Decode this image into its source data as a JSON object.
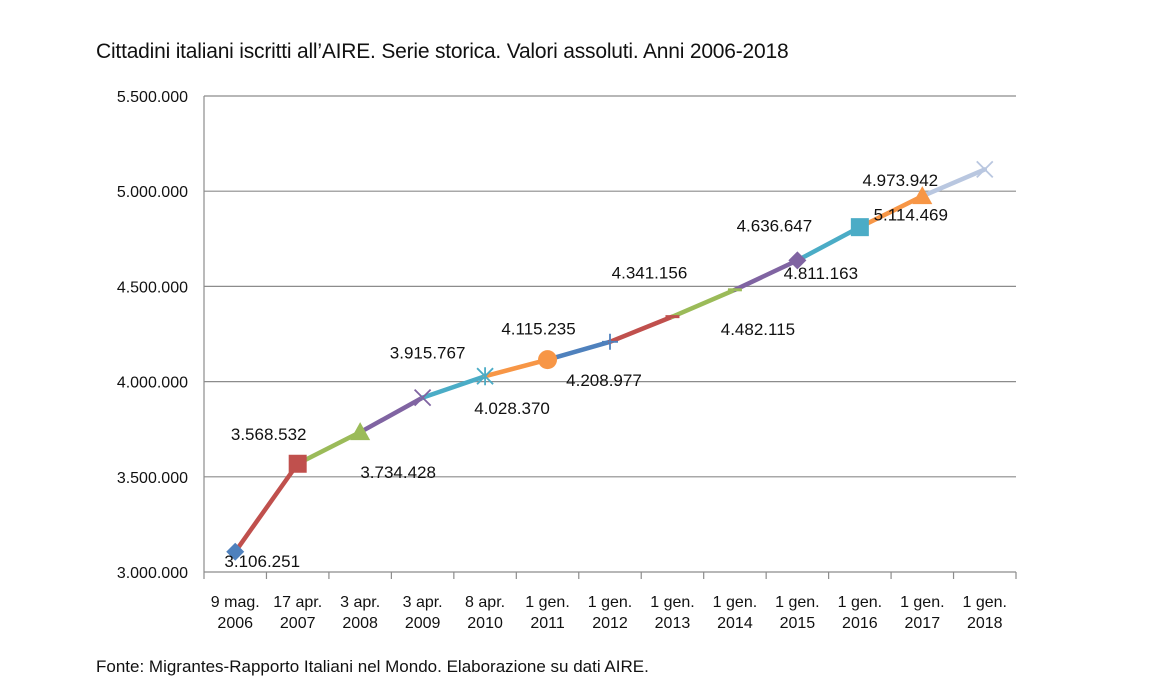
{
  "title": "Cittadini italiani iscritti all’AIRE. Serie storica. Valori assoluti. Anni 2006-2018",
  "source": "Fonte: Migrantes-Rapporto Italiani nel Mondo. Elaborazione su dati AIRE.",
  "chart_data": {
    "type": "line",
    "title": "Cittadini italiani iscritti all’AIRE. Serie storica. Valori assoluti. Anni 2006-2018",
    "xlabel": "",
    "ylabel": "",
    "ylim": [
      3000000,
      5500000
    ],
    "y_ticks": [
      "3.000.000",
      "3.500.000",
      "4.000.000",
      "4.500.000",
      "5.000.000",
      "5.500.000"
    ],
    "grid": "horizontal",
    "categories": [
      [
        "9 mag.",
        "2006"
      ],
      [
        "17 apr.",
        "2007"
      ],
      [
        "3 apr.",
        "2008"
      ],
      [
        "3 apr.",
        "2009"
      ],
      [
        "8 apr.",
        "2010"
      ],
      [
        "1 gen.",
        "2011"
      ],
      [
        "1 gen.",
        "2012"
      ],
      [
        "1 gen.",
        "2013"
      ],
      [
        "1 gen.",
        "2014"
      ],
      [
        "1 gen.",
        "2015"
      ],
      [
        "1 gen.",
        "2016"
      ],
      [
        "1 gen.",
        "2017"
      ],
      [
        "1 gen.",
        "2018"
      ]
    ],
    "values": [
      3106251,
      3568532,
      3734428,
      3915767,
      4028370,
      4115235,
      4208977,
      4341156,
      4482115,
      4636647,
      4811163,
      4973942,
      5114469
    ],
    "labels": [
      "3.106.251",
      "3.568.532",
      "3.734.428",
      "3.915.767",
      "4.028.370",
      "4.115.235",
      "4.208.977",
      "4.341.156",
      "4.482.115",
      "4.636.647",
      "4.811.163",
      "4.973.942",
      "5.114.469"
    ],
    "segment_colors": [
      "#c0504d",
      "#9bbb59",
      "#8064a2",
      "#4bacc6",
      "#f79646",
      "#4f81bd",
      "#c0504d",
      "#9bbb59",
      "#8064a2",
      "#4bacc6",
      "#f79646",
      "#b9c7e0"
    ],
    "marker_colors": [
      "#4f81bd",
      "#c0504d",
      "#9bbb59",
      "#8064a2",
      "#4bacc6",
      "#f79646",
      "#4f81bd",
      "#c0504d",
      "#9bbb59",
      "#8064a2",
      "#4bacc6",
      "#f79646",
      "#b9c7e0"
    ],
    "markers": [
      "diamond",
      "square",
      "triangle",
      "x",
      "star",
      "circle",
      "plus",
      "dash",
      "dash",
      "diamond",
      "square",
      "triangle",
      "x"
    ]
  }
}
